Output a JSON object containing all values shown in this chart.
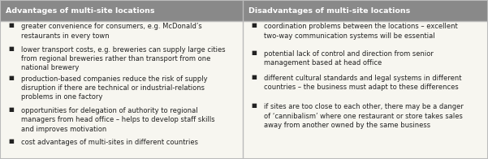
{
  "header_bg": "#898989",
  "header_text_color": "#ffffff",
  "body_bg": "#f7f6f0",
  "body_text_color": "#222222",
  "border_color": "#bbbbbb",
  "divider_color": "#bbbbbb",
  "left_header": "Advantages of multi-site locations",
  "right_header": "Disadvantages of multi-site locations",
  "left_items": [
    "greater convenience for consumers, e.g. McDonald’s\nrestaurants in every town",
    "lower transport costs, e.g. breweries can supply large cities\nfrom regional breweries rather than transport from one\nnational brewery",
    "production-based companies reduce the risk of supply\ndisruption if there are technical or industrial-relations\nproblems in one factory",
    "opportunities for delegation of authority to regional\nmanagers from head office – helps to develop staff skills\nand improves motivation",
    "cost advantages of multi-sites in different countries"
  ],
  "right_items": [
    "coordination problems between the locations – excellent\ntwo-way communication systems will be essential",
    "potential lack of control and direction from senior\nmanagement based at head office",
    "different cultural standards and legal systems in different\ncountries – the business must adapt to these differences",
    "if sites are too close to each other, there may be a danger\nof ‘cannibalism’ where one restaurant or store takes sales\naway from another owned by the same business"
  ],
  "fig_width": 6.01,
  "fig_height": 1.96,
  "dpi": 100,
  "header_fontsize": 6.8,
  "body_fontsize": 6.0
}
